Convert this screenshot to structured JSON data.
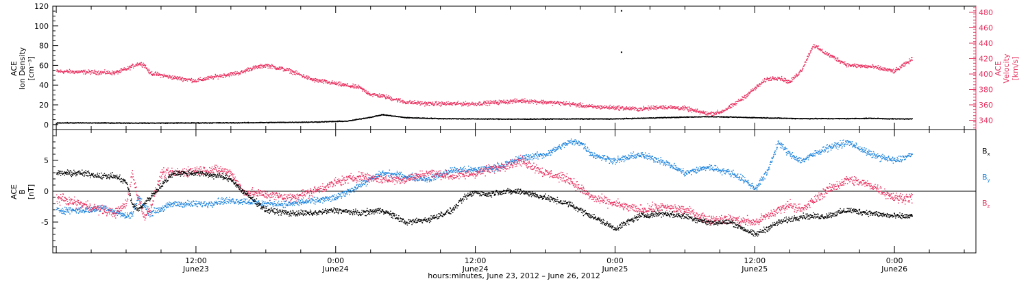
{
  "colors": {
    "black": "#000000",
    "pink": "#e8305f",
    "blue": "#1a82dc",
    "axis": "#000000"
  },
  "xlabel": "hours:minutes, June 23, 2012 – June 26, 2012",
  "x_ticks": [
    {
      "hour": 12,
      "time": "12:00",
      "date": "June23"
    },
    {
      "hour": 24,
      "time": "0:00",
      "date": "June24"
    },
    {
      "hour": 36,
      "time": "12:00",
      "date": "June24"
    },
    {
      "hour": 48,
      "time": "0:00",
      "date": "June25"
    },
    {
      "hour": 60,
      "time": "12:00",
      "date": "June25"
    },
    {
      "hour": 72,
      "time": "0:00",
      "date": "June26"
    }
  ],
  "chart_data": [
    {
      "type": "scatter",
      "panel": "top",
      "ylabel_lines": [
        "ACE",
        "Ion Density",
        "[cm⁻³]"
      ],
      "y2label_lines": [
        "ACE",
        "Velocity",
        "[km/s]"
      ],
      "xlim_hours": [
        -0.3,
        79
      ],
      "ylim": [
        -5,
        120
      ],
      "y_ticks": [
        "0",
        "20",
        "40",
        "60",
        "80",
        "100",
        "120"
      ],
      "y2lim": [
        328,
        488
      ],
      "y2_ticks": [
        "340",
        "360",
        "380",
        "400",
        "420",
        "440",
        "460",
        "480"
      ],
      "series": [
        {
          "name": "",
          "axis": "left",
          "color": "#000000",
          "profile_hours": [
            0,
            8,
            16,
            22,
            25,
            26,
            27,
            28,
            30,
            33,
            36,
            40,
            44,
            48,
            52,
            56,
            60,
            64,
            68,
            70,
            72,
            73.5
          ],
          "profile_values": [
            2.2,
            2.0,
            2.3,
            3.0,
            4.0,
            6.0,
            8.0,
            10.5,
            7.5,
            6.5,
            6.2,
            6.0,
            6.2,
            6.2,
            7.5,
            8.5,
            7.5,
            6.5,
            6.5,
            6.8,
            6.2,
            6.2
          ],
          "outliers": [
            {
              "hour": 48.5,
              "value": 116
            },
            {
              "hour": 48.5,
              "value": 74
            }
          ]
        },
        {
          "name": "",
          "axis": "right",
          "color": "#e8305f",
          "profile_hours": [
            0,
            3,
            5,
            6,
            7,
            7.5,
            8,
            10,
            12,
            14,
            16,
            16.5,
            18,
            20,
            22,
            24,
            26,
            27,
            28,
            30,
            32,
            36,
            40,
            44,
            46,
            48,
            50,
            52,
            54,
            55,
            56,
            57,
            58,
            59,
            60,
            61,
            62,
            63,
            64,
            65,
            66,
            67,
            68,
            70,
            72,
            73.5
          ],
          "profile_values": [
            404,
            403,
            402,
            407,
            414,
            413,
            402,
            396,
            392,
            398,
            403,
            407,
            412,
            405,
            393,
            388,
            383,
            374,
            372,
            364,
            362,
            362,
            366,
            362,
            358,
            357,
            355,
            358,
            356,
            352,
            349,
            351,
            359,
            370,
            382,
            394,
            396,
            390,
            406,
            438,
            428,
            420,
            412,
            410,
            404,
            420
          ],
          "scatter_spread": 4
        }
      ]
    },
    {
      "type": "scatter",
      "panel": "bottom",
      "ylabel_lines": [
        "ACE",
        "B",
        "[nT]"
      ],
      "xlim_hours": [
        -0.3,
        79
      ],
      "ylim": [
        -10,
        10
      ],
      "y_ticks": [
        "-5",
        "0",
        "5"
      ],
      "zero_line": true,
      "series": [
        {
          "name": "Bx",
          "label_main": "B",
          "label_sub": "x",
          "color": "#000000",
          "profile_hours": [
            0,
            2,
            4,
            5,
            6,
            6.5,
            7,
            8,
            10,
            12,
            14,
            15,
            16,
            18,
            20,
            22,
            24,
            26,
            28,
            30,
            32,
            34,
            35,
            36,
            37,
            38,
            40,
            42,
            44,
            46,
            48,
            50,
            52,
            54,
            56,
            58,
            60,
            62,
            64,
            66,
            68,
            70,
            72,
            73.5
          ],
          "profile_values": [
            3,
            3,
            2.5,
            2.5,
            1.5,
            -2,
            -3,
            -1,
            3,
            3,
            2.5,
            2,
            0,
            -3,
            -3.5,
            -3.5,
            -3,
            -3.5,
            -3,
            -5,
            -4.5,
            -3,
            -1,
            0,
            -0.5,
            0,
            0,
            -1,
            -2,
            -4,
            -6,
            -4,
            -3.5,
            -4,
            -5,
            -5,
            -7,
            -5,
            -4,
            -4,
            -3,
            -3.5,
            -4,
            -4
          ],
          "scatter_spread": 0.7
        },
        {
          "name": "By",
          "label_main": "B",
          "label_sub": "y",
          "color": "#1a82dc",
          "profile_hours": [
            0,
            3,
            4,
            6,
            6.5,
            7,
            8,
            10,
            12,
            13,
            14,
            16,
            18,
            20,
            22,
            24,
            26,
            28,
            30,
            32,
            34,
            36,
            38,
            40,
            42,
            44,
            45,
            46,
            48,
            50,
            52,
            54,
            56,
            58,
            59,
            60,
            61,
            62,
            63,
            64,
            66,
            68,
            70,
            72,
            73.5
          ],
          "profile_values": [
            -3,
            -3,
            -2.5,
            -4,
            -3.5,
            -1,
            -3.5,
            -2,
            -2,
            -2,
            -1.5,
            -1.5,
            -2,
            -2,
            -1.5,
            -1,
            1,
            3,
            2.5,
            2,
            3.5,
            3.5,
            4,
            5.5,
            6,
            8,
            8,
            6,
            5,
            6,
            5,
            3,
            4,
            3,
            2,
            0.5,
            3,
            8,
            6,
            5,
            7,
            8,
            6,
            5,
            6
          ],
          "scatter_spread": 0.8
        },
        {
          "name": "Bz",
          "label_main": "B",
          "label_sub": "z",
          "color": "#e8305f",
          "profile_hours": [
            0,
            2,
            4,
            5,
            6,
            6.5,
            7,
            7.5,
            8,
            9,
            10,
            12,
            14,
            15,
            16,
            18,
            20,
            22,
            24,
            26,
            28,
            30,
            32,
            34,
            36,
            38,
            40,
            42,
            44,
            46,
            48,
            50,
            52,
            54,
            56,
            58,
            60,
            61,
            62,
            63,
            64,
            66,
            68,
            70,
            72,
            73.5
          ],
          "profile_values": [
            -1,
            -2,
            -3,
            -3.5,
            -2,
            3,
            -1,
            -4,
            -3,
            3,
            3,
            3.5,
            3.5,
            3,
            0,
            -0.5,
            -1,
            0,
            1.5,
            2.5,
            2,
            2,
            3,
            2.5,
            3,
            4,
            5,
            3,
            2,
            -1,
            -2,
            -3,
            -2.5,
            -3,
            -4.5,
            -4.5,
            -5,
            -4,
            -3,
            -2,
            -3,
            0,
            2,
            1,
            -1,
            -1
          ],
          "scatter_spread": 1.1
        }
      ]
    }
  ]
}
